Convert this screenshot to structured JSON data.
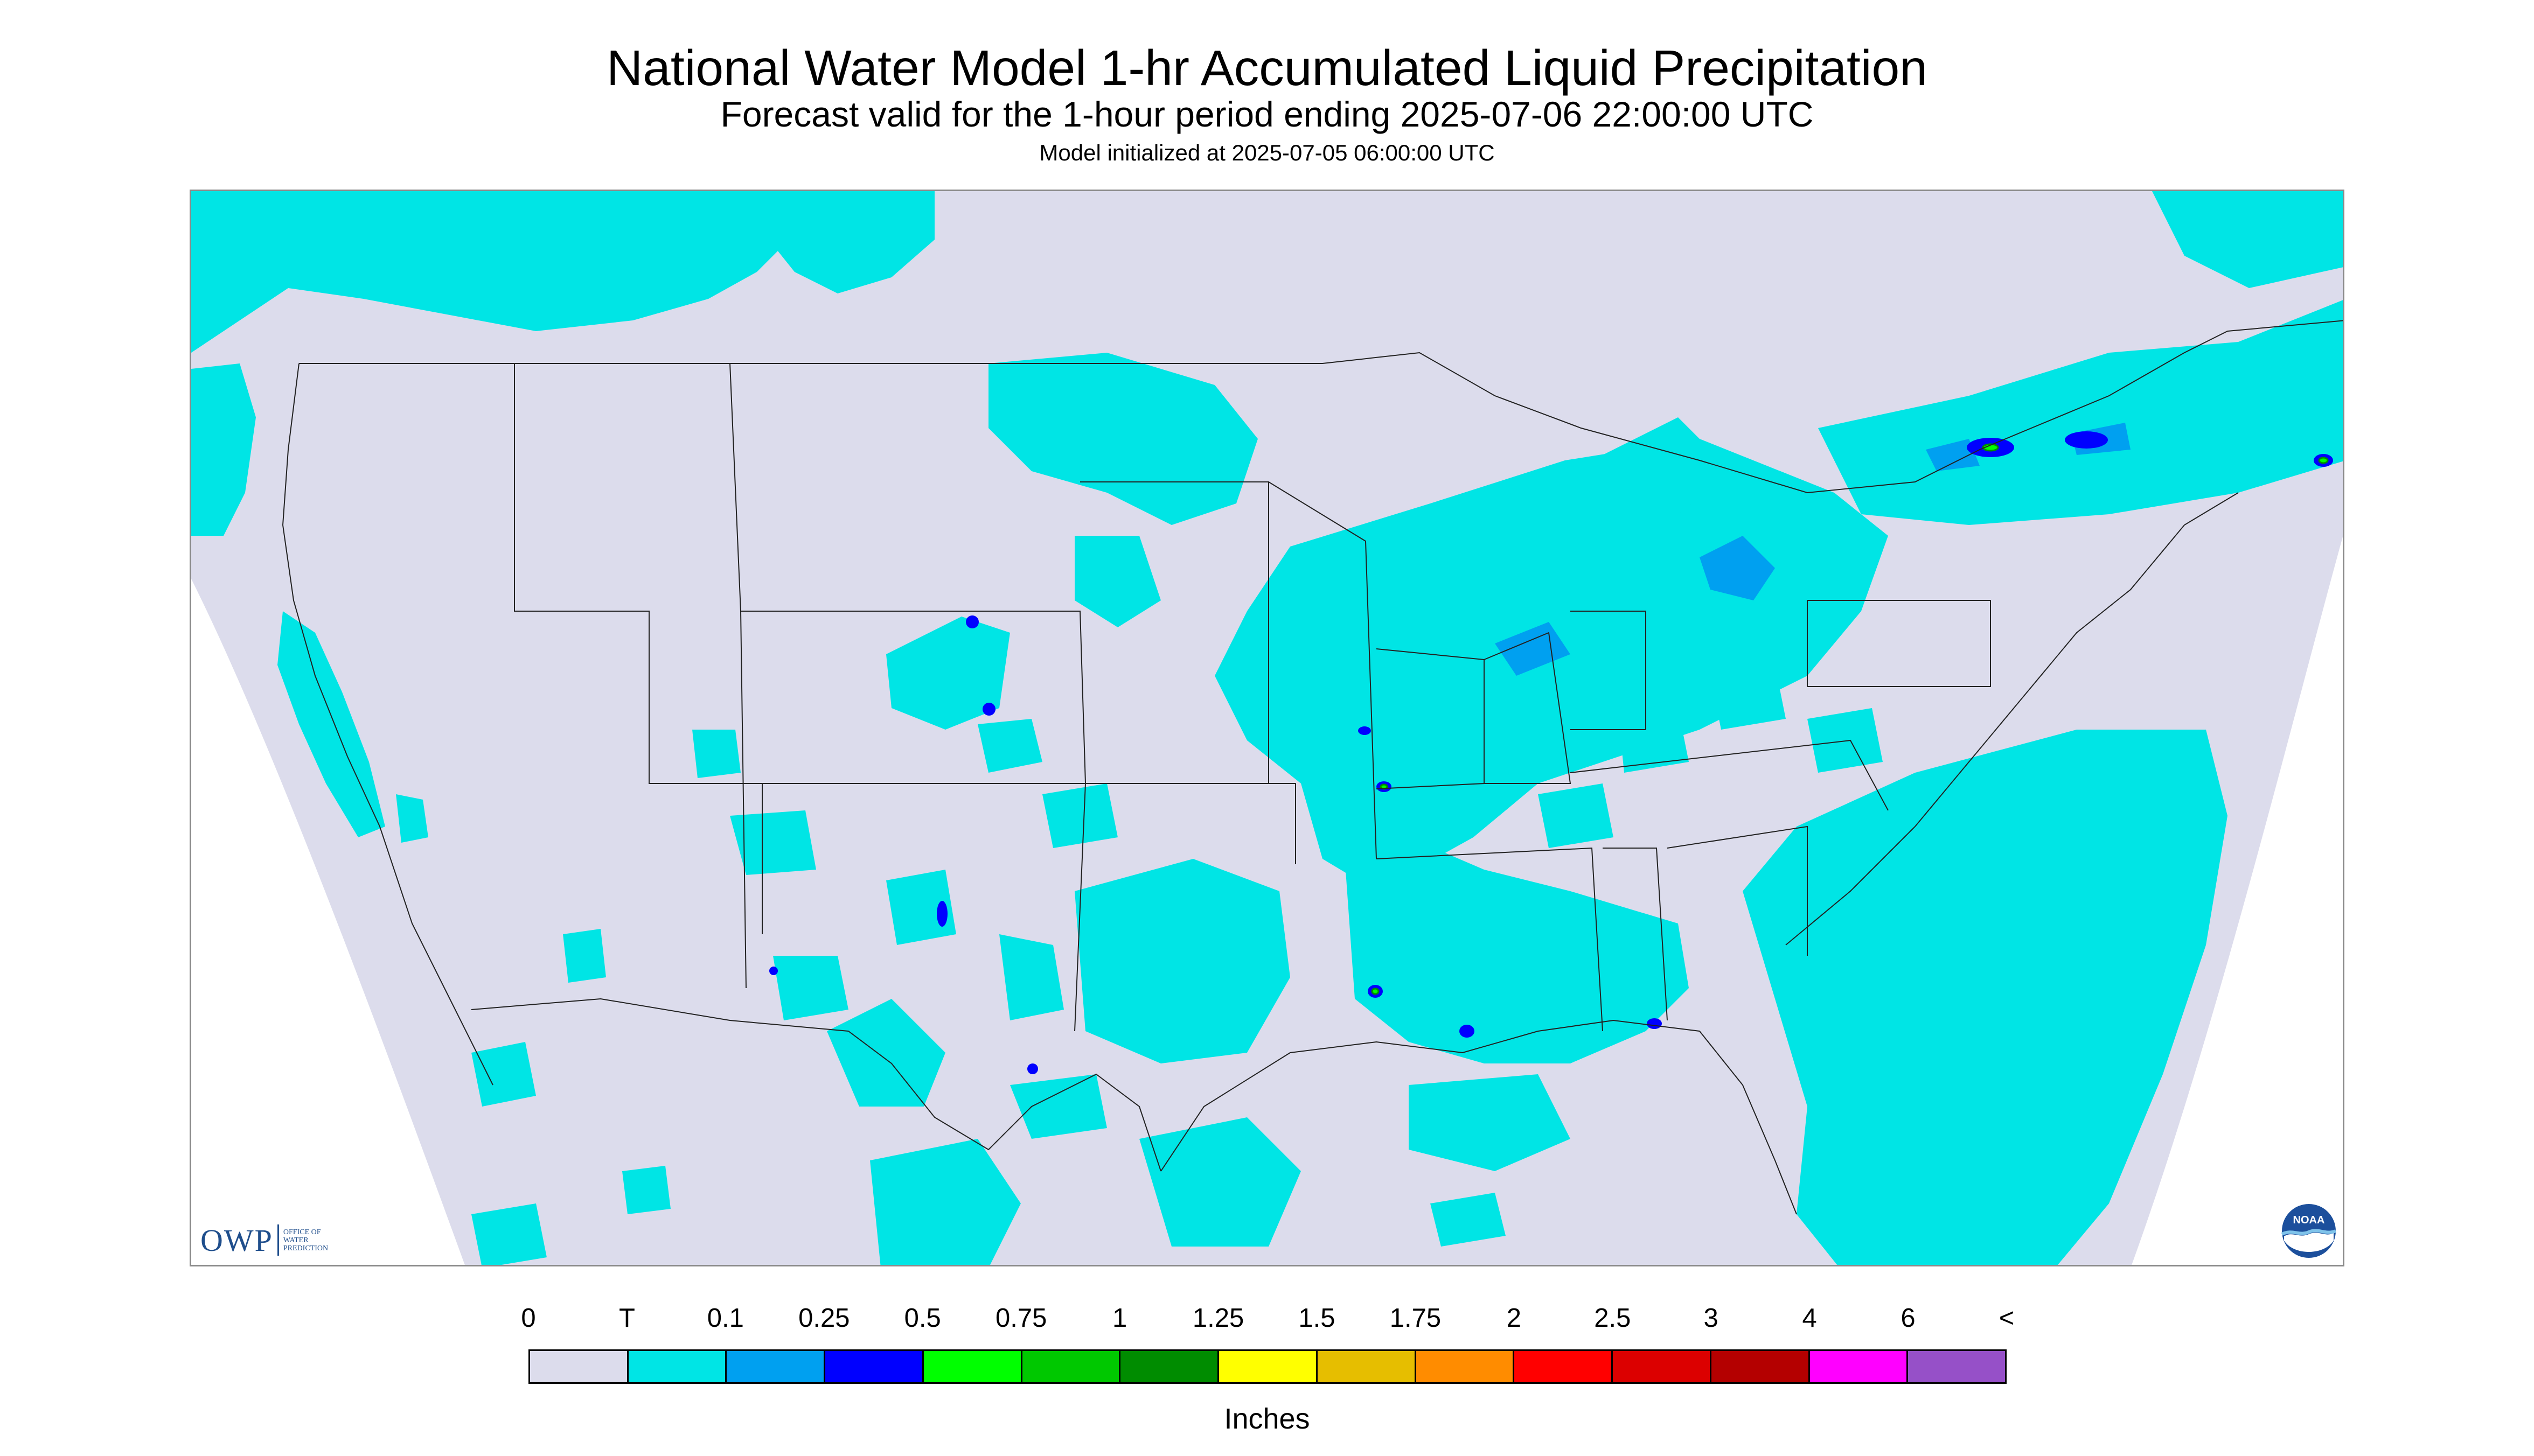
{
  "title": "National Water Model 1-hr Accumulated Liquid Precipitation",
  "subtitle": "Forecast valid for the 1-hour period ending 2025-07-06 22:00:00 UTC",
  "init_line": "Model initialized at 2025-07-05 06:00:00 UTC",
  "map": {
    "region": "Contiguous United States and surrounding areas",
    "background_color": "#dcdcec",
    "border_line_color": "#000000"
  },
  "legend": {
    "units": "Inches",
    "labels": [
      "0",
      "T",
      "0.1",
      "0.25",
      "0.5",
      "0.75",
      "1",
      "1.25",
      "1.5",
      "1.75",
      "2",
      "2.5",
      "3",
      "4",
      "6",
      "<"
    ],
    "colors": [
      "#dcdcec",
      "#00e5e5",
      "#00a0f0",
      "#0000ff",
      "#00ff00",
      "#00c800",
      "#008c00",
      "#ffff00",
      "#e6be00",
      "#ff8c00",
      "#ff0000",
      "#dc0000",
      "#b40000",
      "#ff00ff",
      "#9650c8"
    ]
  },
  "logos": {
    "owp_mark": "OWP",
    "owp_text": [
      "OFFICE OF",
      "WATER",
      "PREDICTION"
    ],
    "noaa": "NOAA"
  }
}
